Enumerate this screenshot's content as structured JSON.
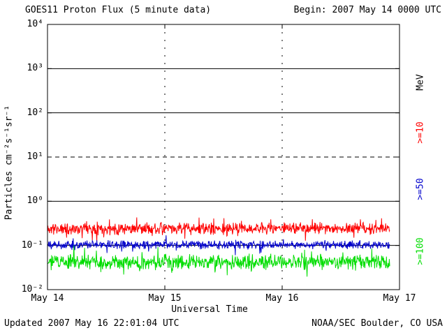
{
  "chart_data": {
    "type": "line",
    "title": "GOES11 Proton Flux (5 minute data)",
    "begin_label": "Begin: 2007 May 14 0000 UTC",
    "xlabel": "Universal Time",
    "ylabel": "Particles cm⁻²s⁻¹sr⁻¹",
    "x_tick_labels": [
      "May 14",
      "May 15",
      "May 16",
      "May 17"
    ],
    "x_range_days": [
      0,
      3
    ],
    "y_scale": "log10",
    "y_exponent_range": [
      -2,
      4
    ],
    "y_tick_labels": [
      "10⁴",
      "10³",
      "10²",
      "10¹",
      "10⁰",
      "10⁻¹",
      "10⁻²"
    ],
    "y_tick_exponents": [
      4,
      3,
      2,
      1,
      0,
      -1,
      -2
    ],
    "grid": {
      "solid_hline_exponents": [
        3,
        2,
        0,
        -1
      ],
      "dashed_hline_exponents": [
        1
      ],
      "dashed_vline_days": [
        1,
        2
      ]
    },
    "right_axis_unit": "MeV",
    "series": [
      {
        "name": ">=10",
        "color": "#ff0000",
        "median_flux": 0.24,
        "noise_log10": 0.15,
        "spike_prob": 0.07,
        "spike_log10": 0.24,
        "clamp_log10": [
          -0.95,
          -0.18
        ],
        "seed": 11,
        "points_per_day": 288,
        "end_day": 2.917
      },
      {
        "name": ">=50",
        "color": "#0000cc",
        "median_flux": 0.103,
        "noise_log10": 0.11,
        "spike_prob": 0.05,
        "spike_log10": 0.18,
        "clamp_log10": [
          -1.25,
          -0.72
        ],
        "seed": 53,
        "points_per_day": 288,
        "end_day": 2.917
      },
      {
        "name": ">=100",
        "color": "#00dd00",
        "median_flux": 0.042,
        "noise_log10": 0.2,
        "spike_prob": 0.07,
        "spike_log10": 0.28,
        "clamp_log10": [
          -1.8,
          -1.0
        ],
        "seed": 97,
        "points_per_day": 288,
        "end_day": 2.917
      }
    ],
    "updated_label": "Updated 2007 May 16 22:01:04 UTC",
    "credit_label": "NOAA/SEC Boulder, CO USA"
  }
}
